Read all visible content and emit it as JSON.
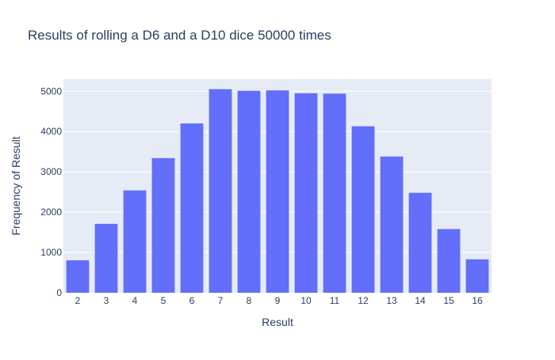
{
  "chart_data": {
    "type": "bar",
    "title": "Results of rolling a D6 and a D10 dice 50000 times",
    "xlabel": "Result",
    "ylabel": "Frequency of Result",
    "categories": [
      "2",
      "3",
      "4",
      "5",
      "6",
      "7",
      "8",
      "9",
      "10",
      "11",
      "12",
      "13",
      "14",
      "15",
      "16"
    ],
    "values": [
      805,
      1710,
      2540,
      3340,
      4200,
      5050,
      5010,
      5020,
      4950,
      4940,
      4130,
      3380,
      2480,
      1580,
      830
    ],
    "ylim": [
      0,
      5300
    ],
    "yticks": [
      0,
      1000,
      2000,
      3000,
      4000,
      5000
    ],
    "grid": true,
    "legend": "none",
    "colors": {
      "bar": "#636efa",
      "plot_background": "#e5ecf6",
      "gridline": "#ffffff",
      "text": "#2a3f5f"
    }
  }
}
